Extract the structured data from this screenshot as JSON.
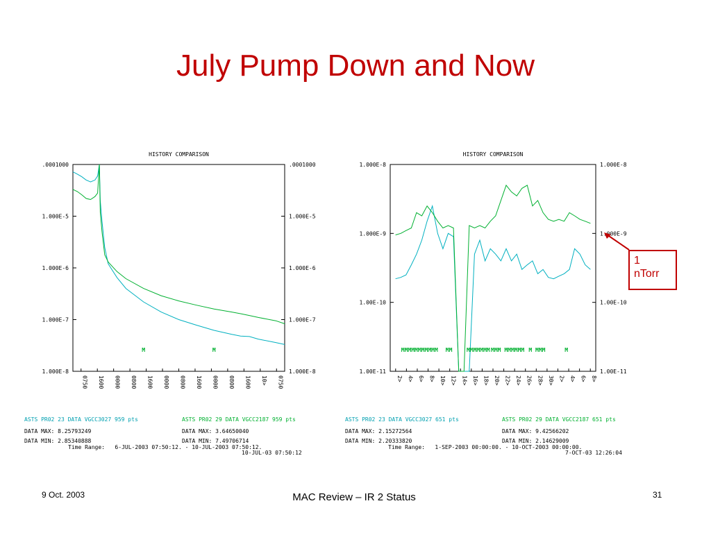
{
  "slide": {
    "title": "July Pump Down and Now",
    "footer_date": "9 Oct. 2003",
    "footer_center": "MAC Review – IR 2 Status",
    "page_number": "31",
    "callout": [
      "1",
      "nTorr"
    ]
  },
  "colors": {
    "title": "#c00000",
    "series_cyan": "#00b0c0",
    "series_green": "#00b030",
    "axis": "#000000"
  },
  "chart_data": [
    {
      "type": "line",
      "title": "HISTORY COMPARISON",
      "y_scale": "log",
      "ylim": [
        1e-08,
        0.0001
      ],
      "y_ticks": [
        ".0001000",
        "1.000E-5",
        "1.000E-6",
        "1.000E-7",
        "1.000E-8"
      ],
      "x_ticks": [
        "0750",
        "1600",
        "0000",
        "0800",
        "1600",
        "0000",
        "0800",
        "1600",
        "0000",
        "0800",
        "1600",
        "10>",
        "0750"
      ],
      "marker_row": [
        "M",
        "M"
      ],
      "series": [
        {
          "label": "ASTS PR02 23 DATA VGCC3027 959 pts",
          "data_max": "8.25793249",
          "data_min": "2.85340888",
          "x": [
            0,
            0.5,
            1,
            1.5,
            2,
            2.5,
            2.8,
            3.0,
            3.1,
            3.3,
            3.6,
            4.0,
            5,
            6,
            8,
            10,
            12,
            14,
            16,
            18,
            19,
            20,
            21,
            23,
            24
          ],
          "y": [
            7.2e-05,
            6.5e-05,
            5.8e-05,
            5e-05,
            4.6e-05,
            5e-05,
            6e-05,
            0.0001,
            2e-05,
            8e-06,
            2.5e-06,
            1.2e-06,
            6.5e-07,
            4e-07,
            2.2e-07,
            1.4e-07,
            1e-07,
            7.8e-08,
            6.2e-08,
            5.2e-08,
            4.8e-08,
            4.7e-08,
            4.2e-08,
            3.6e-08,
            3.3e-08
          ]
        },
        {
          "label": "ASTS PR02 29 DATA VGCC2187 959 pts",
          "data_max": "3.64650040",
          "data_min": "7.49706714",
          "x": [
            0,
            0.5,
            1,
            1.5,
            2,
            2.5,
            2.8,
            3.0,
            3.1,
            3.3,
            3.6,
            4.0,
            5,
            6,
            8,
            10,
            12,
            14,
            16,
            18,
            19,
            20,
            21,
            23,
            24
          ],
          "y": [
            3.3e-05,
            3e-05,
            2.6e-05,
            2.2e-05,
            2.1e-05,
            2.4e-05,
            2.8e-05,
            0.0001,
            1.2e-05,
            5e-06,
            1.8e-06,
            1.3e-06,
            8.5e-07,
            6.2e-07,
            4e-07,
            2.9e-07,
            2.3e-07,
            1.9e-07,
            1.6e-07,
            1.4e-07,
            1.3e-07,
            1.2e-07,
            1.1e-07,
            9.5e-08,
            8.3e-08
          ]
        }
      ],
      "time_range": "Time Range:   6-JUL-2003 07:50:12. - 10-JUL-2003 07:50:12.",
      "time_stamp": "10-JUL-03 07:50:12"
    },
    {
      "type": "line",
      "title": "HISTORY COMPARISON",
      "y_scale": "log",
      "ylim": [
        1e-11,
        1e-08
      ],
      "y_ticks": [
        "1.000E-8",
        "1.000E-9",
        "1.00E-10",
        "1.00E-11"
      ],
      "y_ticks_right": [
        "1.000E-8",
        "1.000E-9",
        "1.00E-10",
        "1.00E-11"
      ],
      "x_ticks": [
        "2>",
        "4>",
        "6>",
        "8>",
        "10>",
        "12>",
        "14>",
        "16>",
        "18>",
        "20>",
        "22>",
        "24>",
        "26>",
        "28>",
        "30>",
        "2>",
        "4>",
        "6>",
        "8>"
      ],
      "marker_row": [
        "MMMMMMMMMMM",
        "MM",
        "MMMMMMM",
        "MMM MMMMMM",
        "M MMM",
        "M"
      ],
      "series": [
        {
          "label": "ASTS PR02 23 DATA VGCC3027 651 pts",
          "data_max": "2.15272564",
          "data_min": "2.20333820",
          "x": [
            1,
            2,
            3,
            4,
            5,
            6,
            7,
            8,
            9,
            10,
            11,
            12,
            13,
            14,
            15,
            16,
            17,
            18,
            19,
            20,
            21,
            22,
            23,
            24,
            25,
            26,
            27,
            28,
            29,
            30,
            31,
            32,
            33,
            34,
            35,
            36,
            37,
            38
          ],
          "y": [
            2.2e-10,
            2.3e-10,
            2.5e-10,
            3.5e-10,
            5e-10,
            8e-10,
            1.5e-09,
            2.5e-09,
            1e-09,
            6e-10,
            1e-09,
            9e-10,
            1e-11,
            1e-11,
            1e-11,
            5e-10,
            8e-10,
            4e-10,
            6e-10,
            5e-10,
            4e-10,
            6e-10,
            4e-10,
            5e-10,
            3e-10,
            3.5e-10,
            4e-10,
            2.6e-10,
            3e-10,
            2.3e-10,
            2.2e-10,
            2.4e-10,
            2.6e-10,
            3e-10,
            6e-10,
            5e-10,
            3.5e-10,
            3e-10
          ]
        },
        {
          "label": "ASTS PR02 29 DATA VGCC2187 651 pts",
          "data_max": "9.42566202",
          "data_min": "2.14629009",
          "x": [
            1,
            2,
            3,
            4,
            5,
            6,
            7,
            8,
            9,
            10,
            11,
            12,
            13,
            14,
            15,
            16,
            17,
            18,
            19,
            20,
            21,
            22,
            23,
            24,
            25,
            26,
            27,
            28,
            29,
            30,
            31,
            32,
            33,
            34,
            35,
            36,
            37,
            38
          ],
          "y": [
            9.5e-10,
            1e-09,
            1.1e-09,
            1.2e-09,
            2e-09,
            1.8e-09,
            2.5e-09,
            2e-09,
            1.5e-09,
            1.2e-09,
            1.3e-09,
            1.2e-09,
            1e-11,
            1e-11,
            1.3e-09,
            1.2e-09,
            1.3e-09,
            1.2e-09,
            1.5e-09,
            1.8e-09,
            3e-09,
            5e-09,
            4e-09,
            3.5e-09,
            4.5e-09,
            5e-09,
            2.5e-09,
            3e-09,
            2e-09,
            1.6e-09,
            1.5e-09,
            1.6e-09,
            1.5e-09,
            2e-09,
            1.8e-09,
            1.6e-09,
            1.5e-09,
            1.4e-09
          ]
        }
      ],
      "time_range": "Time Range:   1-SEP-2003 00:00:00. - 10-OCT-2003 00:00:00.",
      "time_stamp": "7-OCT-03 12:26:04"
    }
  ]
}
